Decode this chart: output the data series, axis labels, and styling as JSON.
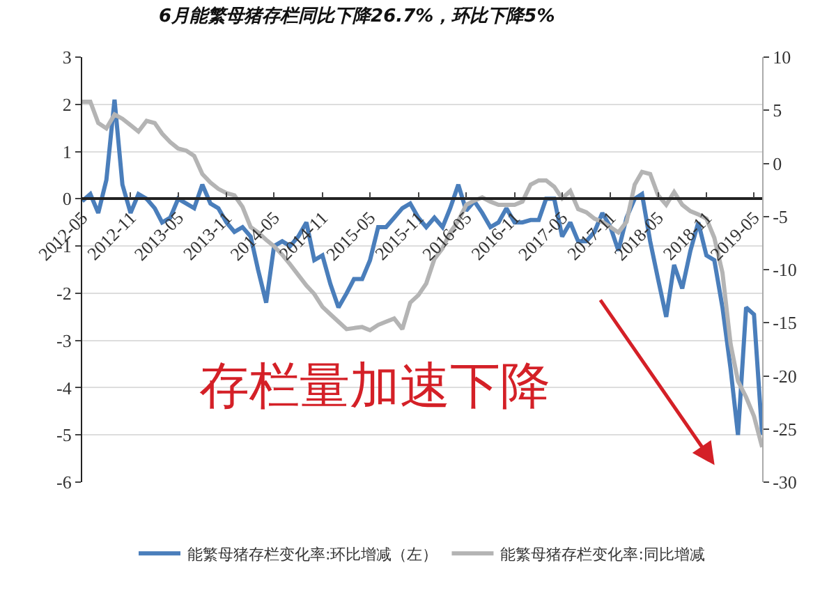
{
  "chart_data": {
    "type": "line",
    "title": "6月能繁母猪存栏同比下降26.7%，环比下降5%",
    "x": [
      "2012-05",
      "2012-06",
      "2012-07",
      "2012-08",
      "2012-09",
      "2012-10",
      "2012-11",
      "2012-12",
      "2013-01",
      "2013-02",
      "2013-03",
      "2013-04",
      "2013-05",
      "2013-06",
      "2013-07",
      "2013-08",
      "2013-09",
      "2013-10",
      "2013-11",
      "2013-12",
      "2014-01",
      "2014-02",
      "2014-03",
      "2014-04",
      "2014-05",
      "2014-06",
      "2014-07",
      "2014-08",
      "2014-09",
      "2014-10",
      "2014-11",
      "2014-12",
      "2015-01",
      "2015-02",
      "2015-03",
      "2015-04",
      "2015-05",
      "2015-06",
      "2015-07",
      "2015-08",
      "2015-09",
      "2015-10",
      "2015-11",
      "2015-12",
      "2016-01",
      "2016-02",
      "2016-03",
      "2016-04",
      "2016-05",
      "2016-06",
      "2016-07",
      "2016-08",
      "2016-09",
      "2016-10",
      "2016-11",
      "2016-12",
      "2017-01",
      "2017-02",
      "2017-03",
      "2017-04",
      "2017-05",
      "2017-06",
      "2017-07",
      "2017-08",
      "2017-09",
      "2017-10",
      "2017-11",
      "2017-12",
      "2018-01",
      "2018-02",
      "2018-03",
      "2018-04",
      "2018-05",
      "2018-06",
      "2018-07",
      "2018-08",
      "2018-09",
      "2018-10",
      "2018-11",
      "2018-12",
      "2019-01",
      "2019-02",
      "2019-03",
      "2019-04",
      "2019-05",
      "2019-06"
    ],
    "series": [
      {
        "name": "能繁母猪存栏变化率:环比增减（左）",
        "color": "#4a7ebb",
        "values": [
          -0.05,
          0.1,
          -0.3,
          0.4,
          2.1,
          0.3,
          -0.3,
          0.1,
          0.0,
          -0.2,
          -0.5,
          -0.4,
          0.0,
          -0.1,
          -0.2,
          0.3,
          -0.1,
          -0.2,
          -0.5,
          -0.7,
          -0.6,
          -0.8,
          -1.5,
          -2.2,
          -1.0,
          -0.9,
          -1.0,
          -0.8,
          -0.5,
          -1.3,
          -1.2,
          -1.8,
          -2.3,
          -2.0,
          -1.7,
          -1.7,
          -1.3,
          -0.6,
          -0.6,
          -0.4,
          -0.2,
          -0.1,
          -0.4,
          -0.6,
          -0.4,
          -0.6,
          -0.2,
          0.3,
          -0.25,
          -0.05,
          -0.3,
          -0.6,
          -0.5,
          -0.2,
          -0.5,
          -0.5,
          -0.45,
          -0.45,
          0.0,
          0.0,
          -0.8,
          -0.5,
          -0.9,
          -0.9,
          -0.7,
          -0.3,
          -0.6,
          -1.1,
          -0.4,
          0.0,
          0.1,
          -0.9,
          -1.7,
          -2.5,
          -1.4,
          -1.9,
          -1.1,
          -0.5,
          -1.2,
          -1.3,
          -2.3,
          -3.6,
          -5.0,
          -2.3,
          -2.45,
          -5.0
        ]
      },
      {
        "name": "能繁母猪存栏变化率:同比增减",
        "color": "#b4b4b4",
        "axis": "y2",
        "values": [
          5.8,
          5.8,
          3.8,
          3.3,
          4.6,
          4.2,
          3.6,
          3.0,
          4.0,
          3.8,
          2.8,
          2.0,
          1.4,
          1.2,
          0.7,
          -1.0,
          -1.8,
          -2.4,
          -2.8,
          -3.0,
          -4.1,
          -6.0,
          -6.5,
          -7.2,
          -7.8,
          -8.6,
          -9.5,
          -10.5,
          -11.5,
          -12.3,
          -13.5,
          -14.2,
          -14.9,
          -15.6,
          -15.5,
          -15.4,
          -15.7,
          -15.2,
          -14.9,
          -14.6,
          -15.6,
          -13.1,
          -12.4,
          -11.3,
          -9.0,
          -8.0,
          -6.5,
          -5.4,
          -3.9,
          -3.5,
          -3.2,
          -3.6,
          -3.9,
          -3.9,
          -3.9,
          -3.6,
          -2.0,
          -1.6,
          -1.6,
          -2.2,
          -3.3,
          -2.6,
          -4.3,
          -4.6,
          -5.2,
          -5.5,
          -6.0,
          -6.5,
          -5.5,
          -2.0,
          -0.8,
          -1.0,
          -3.0,
          -3.9,
          -2.7,
          -3.9,
          -4.5,
          -4.8,
          -5.2,
          -7.0,
          -10.3,
          -17.0,
          -20.5,
          -22.0,
          -23.8,
          -26.7
        ]
      }
    ],
    "xlim": [
      "2012-05",
      "2019-06"
    ],
    "xticks": [
      "2012-05",
      "2012-11",
      "2013-05",
      "2013-11",
      "2014-05",
      "2014-11",
      "2015-05",
      "2015-11",
      "2016-05",
      "2016-11",
      "2017-05",
      "2017-11",
      "2018-05",
      "2018-11",
      "2019-05"
    ],
    "ylim": [
      -6,
      3
    ],
    "yticks": [
      -6,
      -5,
      -4,
      -3,
      -2,
      -1,
      0,
      1,
      2,
      3
    ],
    "y2lim": [
      -30,
      10
    ],
    "y2ticks": [
      -30,
      -25,
      -20,
      -15,
      -10,
      -5,
      0,
      5,
      10
    ],
    "grid": "y",
    "legend": "bottom",
    "marker": "none",
    "line_style": "solid",
    "annotations": [
      "存栏量加速下降"
    ]
  }
}
